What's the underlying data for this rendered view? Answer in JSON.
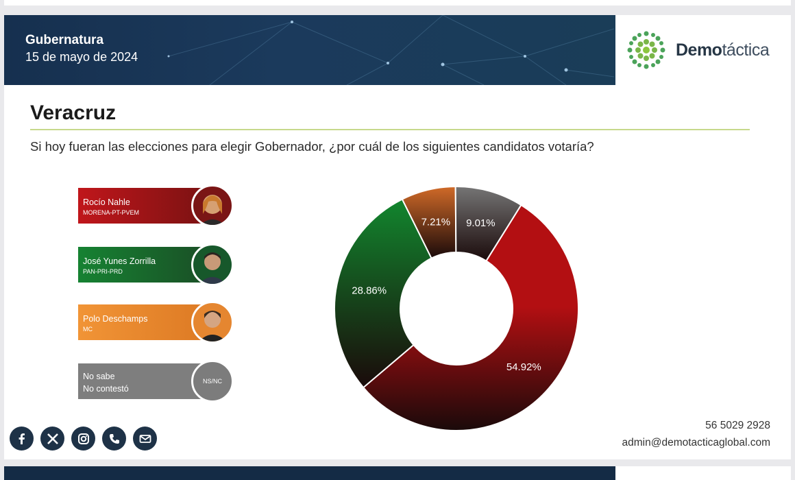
{
  "header": {
    "title": "Gubernatura",
    "date": "15 de mayo de 2024"
  },
  "logo": {
    "text_bold": "Demo",
    "text_thin": "táctica"
  },
  "region": "Veracruz",
  "question": "Si hoy fueran las elecciones para elegir Gobernador, ¿por cuál de los siguientes candidatos votaría?",
  "candidates": [
    {
      "name": "Rocío Nahle",
      "party": "MORENA-PT-PVEM",
      "color": "#8e1414"
    },
    {
      "name": "José Yunes Zorrilla",
      "party": "PAN-PRI-PRD",
      "color": "#1f6b2c"
    },
    {
      "name": "Polo Deschamps",
      "party": "MC",
      "color": "#e8872f"
    },
    {
      "name": "No sabe",
      "name2": "No contestó",
      "badge": "NS/NC",
      "color": "#7d7d7d"
    }
  ],
  "chart_data": {
    "type": "pie",
    "labels": [
      "Rocío Nahle",
      "José Yunes Zorrilla",
      "Polo Deschamps",
      "No sabe / No contestó"
    ],
    "values": [
      54.92,
      28.86,
      7.21,
      9.01
    ],
    "data_labels": [
      "54.92%",
      "28.86%",
      "7.21%",
      "9.01%"
    ],
    "colors": [
      "#b30f12",
      "#12862e",
      "#d06a28",
      "#757575"
    ],
    "hole": true
  },
  "contact": {
    "phone": "56 5029 2928",
    "email": "admin@demotacticaglobal.com"
  },
  "socials": [
    "facebook-icon",
    "x-icon",
    "instagram-icon",
    "phone-icon",
    "mail-icon"
  ]
}
